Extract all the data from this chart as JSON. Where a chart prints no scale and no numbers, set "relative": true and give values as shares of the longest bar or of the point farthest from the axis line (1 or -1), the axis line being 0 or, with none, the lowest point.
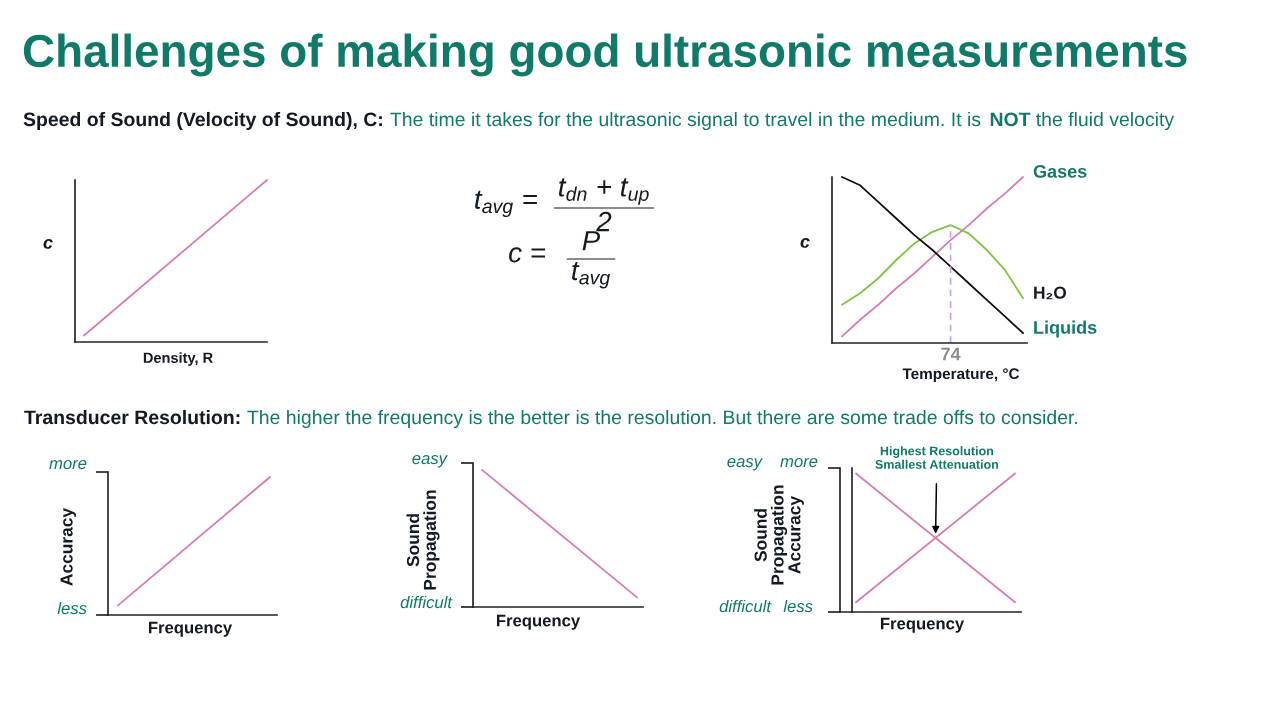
{
  "chart_data": [
    {
      "type": "other",
      "title": "Challenges of making good ultrasonic measurements",
      "annotations": [
        "Speed of Sound (Velocity of Sound), C:",
        "The time it takes for the ultrasonic signal to travel in the medium. It is",
        "NOT",
        "the fluid velocity"
      ]
    },
    {
      "type": "line",
      "categories": [
        null,
        null
      ],
      "values": [
        0.04,
        1
      ],
      "color": "#d77db5",
      "relative": true,
      "xlabel": "Density, R",
      "ylabel": "c"
    },
    {
      "type": "other",
      "annotations": [
        "t$_{avg}$ =",
        "t$_{dn}$ + t$_{up}$",
        "2",
        "c =",
        "P",
        "t$_{avg}$"
      ]
    },
    {
      "type": "line",
      "categories": [
        null,
        null,
        null,
        null,
        null,
        null,
        null,
        null,
        null,
        null,
        null
      ],
      "series": [
        {
          "name": "Gases",
          "color": "#d77db5",
          "values": [
            0.04,
            0.14,
            0.23,
            0.33,
            0.42,
            0.52,
            0.62,
            0.71,
            0.81,
            0.9,
            1
          ]
        },
        {
          "name": "H₂O",
          "color": "#82c341",
          "values": [
            0.23,
            0.3,
            0.39,
            0.5,
            0.6,
            0.67,
            0.71,
            0.66,
            0.56,
            0.44,
            0.27
          ]
        },
        {
          "name": "Liquids",
          "color": "#111111",
          "values": [
            1,
            0.95,
            0.85,
            0.75,
            0.65,
            0.56,
            0.46,
            0.36,
            0.26,
            0.16,
            0.06
          ]
        }
      ],
      "relative": true,
      "xlabel": "Temperature, °C",
      "ylabel": "c",
      "annotations": [
        "74"
      ]
    },
    {
      "type": "other",
      "annotations": [
        "Transducer Resolution:",
        "The higher the frequency is the better is the resolution. But there are some trade offs to consider."
      ]
    },
    {
      "type": "line",
      "categories": [
        null,
        null
      ],
      "values": [
        0.07,
        1
      ],
      "color": "#d77db5",
      "relative": true,
      "xlabel": "Frequency",
      "ylabel": "Accuracy",
      "annotations": [
        "more",
        "less"
      ]
    },
    {
      "type": "line",
      "categories": [
        null,
        null
      ],
      "values": [
        1,
        0.07
      ],
      "color": "#d77db5",
      "relative": true,
      "xlabel": "Frequency",
      "ylabel": "Sound\nPropagation",
      "annotations": [
        "easy",
        "difficult"
      ]
    },
    {
      "type": "line",
      "categories": [
        null,
        null
      ],
      "series": [
        {
          "color": "#d77db5",
          "values": [
            1,
            0.07
          ]
        },
        {
          "color": "#d77db5",
          "values": [
            0.07,
            1
          ]
        }
      ],
      "relative": true,
      "xlabel": "Frequency",
      "ylabel": "Sound\nPropagation\nAccuracy",
      "annotations": [
        "Highest Resolution\nSmallest Attenuation",
        "easy",
        "more",
        "difficult",
        "less"
      ]
    }
  ]
}
